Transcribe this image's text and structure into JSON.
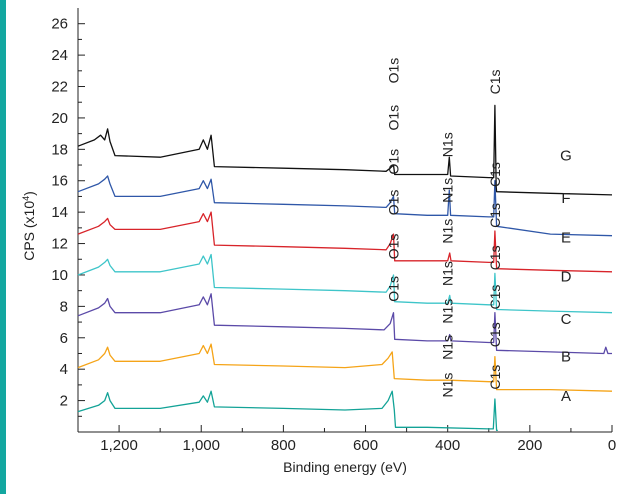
{
  "chart_data": {
    "type": "line",
    "xlabel": "Binding energy (eV)",
    "ylabel": "CPS (x10⁴)",
    "ylabel_main": "CPS (x10",
    "ylabel_exp": "4",
    "ylabel_close": ")",
    "xlim": [
      1300,
      0
    ],
    "ylim": [
      0,
      27
    ],
    "x_ticks": [
      {
        "value": 1200,
        "label": "1,200"
      },
      {
        "value": 1000,
        "label": "1,000"
      },
      {
        "value": 800,
        "label": "800"
      },
      {
        "value": 600,
        "label": "600"
      },
      {
        "value": 400,
        "label": "400"
      },
      {
        "value": 200,
        "label": "200"
      },
      {
        "value": 0,
        "label": "0"
      }
    ],
    "y_ticks": [
      {
        "value": 2,
        "label": "2"
      },
      {
        "value": 4,
        "label": "4"
      },
      {
        "value": 6,
        "label": "6"
      },
      {
        "value": 8,
        "label": "8"
      },
      {
        "value": 10,
        "label": "10"
      },
      {
        "value": 12,
        "label": "12"
      },
      {
        "value": 14,
        "label": "14"
      },
      {
        "value": 16,
        "label": "16"
      },
      {
        "value": 18,
        "label": "18"
      },
      {
        "value": 20,
        "label": "20"
      },
      {
        "value": 22,
        "label": "22"
      },
      {
        "value": 24,
        "label": "24"
      },
      {
        "value": 26,
        "label": "26"
      }
    ],
    "series": [
      {
        "name": "A",
        "color": "#13a397",
        "points": [
          [
            1300,
            1.3
          ],
          [
            1250,
            1.7
          ],
          [
            1235,
            2.0
          ],
          [
            1228,
            2.5
          ],
          [
            1222,
            2.0
          ],
          [
            1210,
            1.5
          ],
          [
            1100,
            1.5
          ],
          [
            1005,
            1.9
          ],
          [
            995,
            2.3
          ],
          [
            985,
            1.9
          ],
          [
            976,
            2.6
          ],
          [
            968,
            1.6
          ],
          [
            800,
            1.5
          ],
          [
            650,
            1.4
          ],
          [
            560,
            1.5
          ],
          [
            545,
            2.0
          ],
          [
            535,
            2.6
          ],
          [
            530,
            1.4
          ],
          [
            527,
            0.3
          ],
          [
            450,
            0.3
          ],
          [
            300,
            0.2
          ],
          [
            289,
            0.2
          ],
          [
            285,
            2.1
          ],
          [
            281,
            0.1
          ],
          [
            278,
            0.1
          ]
        ]
      },
      {
        "name": "B",
        "color": "#f5a418",
        "points": [
          [
            1300,
            4.1
          ],
          [
            1250,
            4.6
          ],
          [
            1235,
            5.0
          ],
          [
            1228,
            5.4
          ],
          [
            1222,
            4.9
          ],
          [
            1210,
            4.5
          ],
          [
            1100,
            4.5
          ],
          [
            1005,
            5.0
          ],
          [
            995,
            5.5
          ],
          [
            985,
            5.0
          ],
          [
            976,
            5.6
          ],
          [
            968,
            4.3
          ],
          [
            800,
            4.2
          ],
          [
            650,
            4.1
          ],
          [
            560,
            4.3
          ],
          [
            545,
            4.7
          ],
          [
            535,
            5.1
          ],
          [
            530,
            3.4
          ],
          [
            450,
            3.3
          ],
          [
            395,
            3.3
          ],
          [
            300,
            3.2
          ],
          [
            288,
            3.2
          ],
          [
            285,
            4.8
          ],
          [
            281,
            2.7
          ],
          [
            150,
            2.7
          ],
          [
            0,
            2.6
          ]
        ]
      },
      {
        "name": "C",
        "color": "#5b4aa8",
        "points": [
          [
            1300,
            7.4
          ],
          [
            1250,
            7.9
          ],
          [
            1235,
            8.2
          ],
          [
            1228,
            8.5
          ],
          [
            1222,
            8.0
          ],
          [
            1210,
            7.6
          ],
          [
            1100,
            7.6
          ],
          [
            1005,
            8.1
          ],
          [
            995,
            8.6
          ],
          [
            985,
            8.1
          ],
          [
            976,
            8.8
          ],
          [
            968,
            6.8
          ],
          [
            800,
            6.7
          ],
          [
            650,
            6.6
          ],
          [
            555,
            6.5
          ],
          [
            540,
            6.9
          ],
          [
            532,
            7.6
          ],
          [
            529,
            5.9
          ],
          [
            450,
            5.8
          ],
          [
            400,
            5.8
          ],
          [
            395,
            6.2
          ],
          [
            392,
            5.8
          ],
          [
            300,
            5.7
          ],
          [
            288,
            5.7
          ],
          [
            285,
            7.6
          ],
          [
            281,
            5.2
          ],
          [
            150,
            5.1
          ],
          [
            20,
            5.0
          ],
          [
            15,
            5.4
          ],
          [
            10,
            5.0
          ],
          [
            0,
            5.0
          ]
        ]
      },
      {
        "name": "D",
        "color": "#3ec5c9",
        "points": [
          [
            1300,
            10.0
          ],
          [
            1250,
            10.5
          ],
          [
            1235,
            10.8
          ],
          [
            1228,
            11.0
          ],
          [
            1222,
            10.6
          ],
          [
            1210,
            10.2
          ],
          [
            1100,
            10.2
          ],
          [
            1005,
            10.7
          ],
          [
            995,
            11.2
          ],
          [
            985,
            10.7
          ],
          [
            976,
            11.3
          ],
          [
            968,
            9.2
          ],
          [
            800,
            9.1
          ],
          [
            650,
            9.0
          ],
          [
            550,
            8.9
          ],
          [
            540,
            9.3
          ],
          [
            532,
            10.0
          ],
          [
            529,
            8.3
          ],
          [
            450,
            8.2
          ],
          [
            400,
            8.2
          ],
          [
            395,
            8.7
          ],
          [
            392,
            8.2
          ],
          [
            300,
            8.1
          ],
          [
            288,
            8.1
          ],
          [
            285,
            10.1
          ],
          [
            281,
            7.8
          ],
          [
            150,
            7.7
          ],
          [
            0,
            7.6
          ]
        ]
      },
      {
        "name": "E",
        "color": "#d8242a",
        "points": [
          [
            1300,
            12.6
          ],
          [
            1250,
            13.1
          ],
          [
            1235,
            13.4
          ],
          [
            1228,
            13.6
          ],
          [
            1222,
            13.2
          ],
          [
            1210,
            12.9
          ],
          [
            1100,
            12.9
          ],
          [
            1005,
            13.4
          ],
          [
            995,
            13.9
          ],
          [
            985,
            13.4
          ],
          [
            976,
            14.0
          ],
          [
            968,
            11.9
          ],
          [
            800,
            11.8
          ],
          [
            650,
            11.7
          ],
          [
            550,
            11.6
          ],
          [
            540,
            12.0
          ],
          [
            532,
            12.6
          ],
          [
            529,
            10.9
          ],
          [
            450,
            10.9
          ],
          [
            400,
            10.9
          ],
          [
            395,
            11.4
          ],
          [
            392,
            10.9
          ],
          [
            300,
            10.8
          ],
          [
            288,
            10.8
          ],
          [
            285,
            12.8
          ],
          [
            281,
            10.4
          ],
          [
            150,
            10.3
          ],
          [
            0,
            10.2
          ]
        ]
      },
      {
        "name": "F",
        "color": "#2f57a8",
        "points": [
          [
            1300,
            15.3
          ],
          [
            1250,
            15.8
          ],
          [
            1235,
            16.1
          ],
          [
            1228,
            16.3
          ],
          [
            1222,
            15.8
          ],
          [
            1210,
            15.0
          ],
          [
            1100,
            15.0
          ],
          [
            1005,
            15.5
          ],
          [
            995,
            16.0
          ],
          [
            985,
            15.5
          ],
          [
            976,
            16.1
          ],
          [
            968,
            14.6
          ],
          [
            800,
            14.5
          ],
          [
            650,
            14.4
          ],
          [
            550,
            14.3
          ],
          [
            540,
            14.6
          ],
          [
            532,
            15.0
          ],
          [
            529,
            13.9
          ],
          [
            450,
            13.8
          ],
          [
            400,
            13.8
          ],
          [
            396,
            15.4
          ],
          [
            393,
            13.8
          ],
          [
            300,
            13.7
          ],
          [
            288,
            13.7
          ],
          [
            285,
            16.0
          ],
          [
            281,
            13.1
          ],
          [
            150,
            12.6
          ],
          [
            0,
            12.5
          ]
        ]
      },
      {
        "name": "G",
        "color": "#111111",
        "points": [
          [
            1300,
            18.2
          ],
          [
            1260,
            18.6
          ],
          [
            1245,
            18.9
          ],
          [
            1235,
            18.6
          ],
          [
            1228,
            19.3
          ],
          [
            1222,
            18.5
          ],
          [
            1210,
            17.6
          ],
          [
            1100,
            17.5
          ],
          [
            1005,
            18.0
          ],
          [
            995,
            18.6
          ],
          [
            985,
            18.0
          ],
          [
            976,
            18.9
          ],
          [
            968,
            16.9
          ],
          [
            800,
            16.8
          ],
          [
            650,
            16.7
          ],
          [
            550,
            16.6
          ],
          [
            540,
            16.8
          ],
          [
            532,
            17.0
          ],
          [
            529,
            16.4
          ],
          [
            450,
            16.4
          ],
          [
            400,
            16.4
          ],
          [
            396,
            17.5
          ],
          [
            393,
            16.3
          ],
          [
            300,
            16.2
          ],
          [
            288,
            16.2
          ],
          [
            285,
            20.8
          ],
          [
            282,
            15.6
          ],
          [
            281,
            15.3
          ],
          [
            150,
            15.2
          ],
          [
            0,
            15.1
          ]
        ]
      }
    ],
    "series_labels": [
      {
        "text": "A",
        "y": 2.3
      },
      {
        "text": "B",
        "y": 4.8
      },
      {
        "text": "C",
        "y": 7.2
      },
      {
        "text": "D",
        "y": 9.9
      },
      {
        "text": "E",
        "y": 12.4
      },
      {
        "text": "F",
        "y": 14.9
      },
      {
        "text": "G",
        "y": 17.6
      }
    ],
    "annotations": [
      {
        "text": "O1s",
        "x": 532,
        "y": 8.3
      },
      {
        "text": "O1s",
        "x": 532,
        "y": 11.0
      },
      {
        "text": "O1s",
        "x": 532,
        "y": 13.8
      },
      {
        "text": "O1s",
        "x": 532,
        "y": 16.4
      },
      {
        "text": "O1s",
        "x": 532,
        "y": 19.2
      },
      {
        "text": "O1s",
        "x": 532,
        "y": 22.2
      },
      {
        "text": "N1s",
        "x": 400,
        "y": 2.2
      },
      {
        "text": "N1s",
        "x": 400,
        "y": 4.6
      },
      {
        "text": "N1s",
        "x": 400,
        "y": 6.9
      },
      {
        "text": "N1s",
        "x": 400,
        "y": 9.3
      },
      {
        "text": "N1s",
        "x": 400,
        "y": 12.0
      },
      {
        "text": "N1s",
        "x": 400,
        "y": 14.6
      },
      {
        "text": "N1s",
        "x": 400,
        "y": 17.5
      },
      {
        "text": "C1s",
        "x": 285,
        "y": 2.7
      },
      {
        "text": "C1s",
        "x": 285,
        "y": 5.4
      },
      {
        "text": "C1s",
        "x": 285,
        "y": 7.8
      },
      {
        "text": "C1s",
        "x": 285,
        "y": 10.3
      },
      {
        "text": "C1s",
        "x": 285,
        "y": 13.0
      },
      {
        "text": "C1s",
        "x": 285,
        "y": 15.6
      },
      {
        "text": "C1s",
        "x": 285,
        "y": 21.5
      }
    ]
  }
}
